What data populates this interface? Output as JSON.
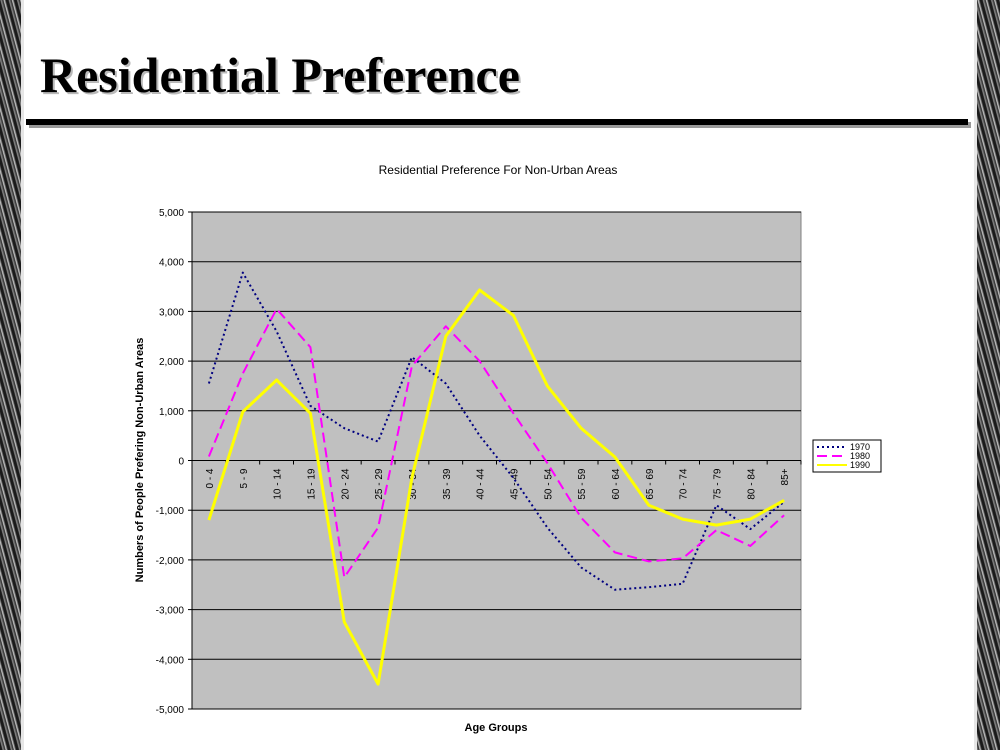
{
  "slide": {
    "title": "Residential Preference"
  },
  "chart_data": {
    "type": "line",
    "title": "Residential Preference For Non-Urban Areas",
    "xlabel": "Age Groups",
    "ylabel": "Numbers of People Prefering Non-Urban Areas",
    "categories": [
      "0 - 4",
      "5 - 9",
      "10 - 14",
      "15 - 19",
      "20 - 24",
      "25 - 29",
      "30 - 34",
      "35 - 39",
      "40 - 44",
      "45 - 49",
      "50 - 54",
      "55 - 59",
      "60 - 64",
      "65 - 69",
      "70 - 74",
      "75 - 79",
      "80 - 84",
      "85+"
    ],
    "ylim": [
      -5000,
      5000
    ],
    "yticks": [
      5000,
      4000,
      3000,
      2000,
      1000,
      0,
      -1000,
      -2000,
      -3000,
      -4000,
      -5000
    ],
    "ytick_labels": [
      "5,000",
      "4,000",
      "3,000",
      "2,000",
      "1,000",
      "0",
      "-1,000",
      "-2,000",
      "-3,000",
      "-4,000",
      "-5,000"
    ],
    "grid": true,
    "plot_background": "#c0c0c0",
    "legend_position": "right",
    "series": [
      {
        "name": "1970",
        "color": "#000080",
        "dash": "dotted",
        "values": [
          1550,
          3780,
          2600,
          1100,
          650,
          380,
          2080,
          1550,
          500,
          -350,
          -1350,
          -2150,
          -2600,
          -2550,
          -2480,
          -900,
          -1380,
          -830
        ]
      },
      {
        "name": "1980",
        "color": "#ff00ff",
        "dash": "dashed",
        "values": [
          80,
          1750,
          3050,
          2280,
          -2350,
          -1350,
          1900,
          2700,
          2000,
          950,
          -50,
          -1150,
          -1850,
          -2030,
          -1970,
          -1400,
          -1720,
          -1100
        ]
      },
      {
        "name": "1990",
        "color": "#ffff00",
        "dash": "solid",
        "values": [
          -1200,
          980,
          1620,
          950,
          -3250,
          -4500,
          -350,
          2500,
          3430,
          2920,
          1500,
          650,
          70,
          -900,
          -1180,
          -1300,
          -1180,
          -800
        ]
      }
    ]
  }
}
